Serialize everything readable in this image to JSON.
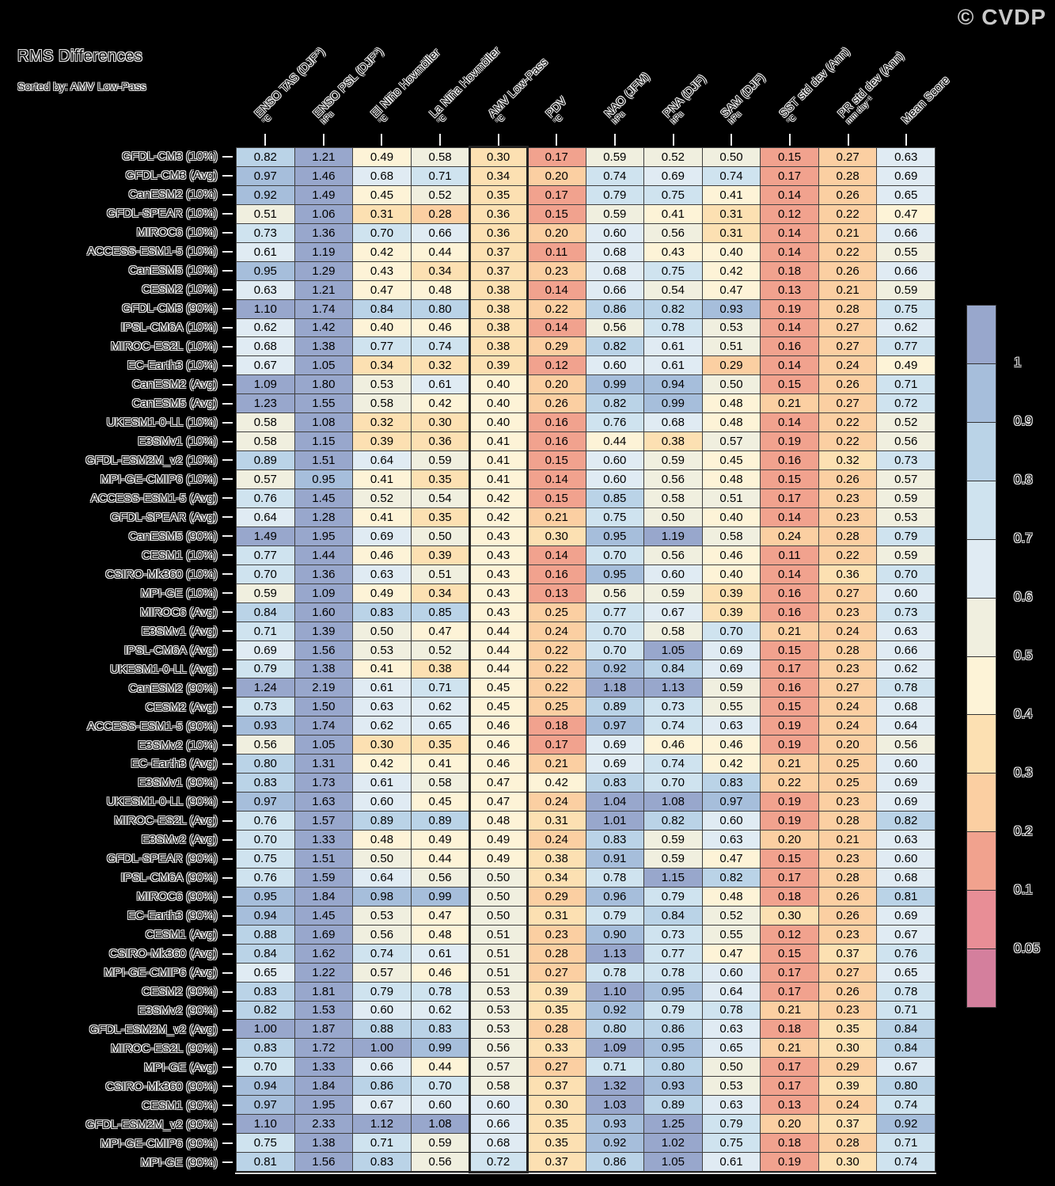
{
  "chart_data": {
    "type": "heatmap",
    "title": "RMS Differences",
    "subtitle": "Sorted by: AMV Low-Pass",
    "watermark": "© CVDP",
    "highlighted_column_index": 4,
    "highlighted_column": "AMV Low-Pass",
    "columns": [
      {
        "label": "ENSO TAS (DJF*)",
        "unit": "°C"
      },
      {
        "label": "ENSO PSL (DJF*)",
        "unit": "hPa"
      },
      {
        "label": "El Niño Hovmöller",
        "unit": "°C"
      },
      {
        "label": "La Niña Hovmöller",
        "unit": "°C"
      },
      {
        "label": "AMV Low-Pass",
        "unit": "°C"
      },
      {
        "label": "PDV",
        "unit": "°C"
      },
      {
        "label": "NAO (JFM)",
        "unit": "hPa"
      },
      {
        "label": "PNA (DJF)",
        "unit": "hPa"
      },
      {
        "label": "SAM (DJF)",
        "unit": "hPa"
      },
      {
        "label": "SST std dev (Ann)",
        "unit": "°C"
      },
      {
        "label": "PR std dev (Ann)",
        "unit": "mm day⁻¹"
      },
      {
        "label": "Mean Score",
        "unit": ""
      }
    ],
    "rows": [
      "GFDL-CM3 (10%)",
      "GFDL-CM3 (Avg)",
      "CanESM2 (10%)",
      "GFDL-SPEAR (10%)",
      "MIROC6 (10%)",
      "ACCESS-ESM1-5 (10%)",
      "CanESM5 (10%)",
      "CESM2 (10%)",
      "GFDL-CM3 (90%)",
      "IPSL-CM6A (10%)",
      "MIROC-ES2L (10%)",
      "EC-Earth3 (10%)",
      "CanESM2 (Avg)",
      "CanESM5 (Avg)",
      "UKESM1-0-LL (10%)",
      "E3SMv1 (10%)",
      "GFDL-ESM2M_v2 (10%)",
      "MPI-GE-CMIP6 (10%)",
      "ACCESS-ESM1-5 (Avg)",
      "GFDL-SPEAR (Avg)",
      "CanESM5 (90%)",
      "CESM1 (10%)",
      "CSIRO-Mk360 (10%)",
      "MPI-GE (10%)",
      "MIROC6 (Avg)",
      "E3SMv1 (Avg)",
      "IPSL-CM6A (Avg)",
      "UKESM1-0-LL (Avg)",
      "CanESM2 (90%)",
      "CESM2 (Avg)",
      "ACCESS-ESM1-5 (90%)",
      "E3SMv2 (10%)",
      "EC-Earth3 (Avg)",
      "E3SMv1 (90%)",
      "UKESM1-0-LL (90%)",
      "MIROC-ES2L (Avg)",
      "E3SMv2 (Avg)",
      "GFDL-SPEAR (90%)",
      "IPSL-CM6A (90%)",
      "MIROC6 (90%)",
      "EC-Earth3 (90%)",
      "CESM1 (Avg)",
      "CSIRO-Mk360 (Avg)",
      "MPI-GE-CMIP6 (Avg)",
      "CESM2 (90%)",
      "E3SMv2 (90%)",
      "GFDL-ESM2M_v2 (Avg)",
      "MIROC-ES2L (90%)",
      "MPI-GE (Avg)",
      "CSIRO-Mk360 (90%)",
      "CESM1 (90%)",
      "GFDL-ESM2M_v2 (90%)",
      "MPI-GE-CMIP6 (90%)",
      "MPI-GE (90%)"
    ],
    "values": [
      [
        0.82,
        1.21,
        0.49,
        0.58,
        0.3,
        0.17,
        0.59,
        0.52,
        0.5,
        0.15,
        0.27,
        0.63
      ],
      [
        0.97,
        1.46,
        0.68,
        0.71,
        0.34,
        0.2,
        0.74,
        0.69,
        0.74,
        0.17,
        0.28,
        0.69
      ],
      [
        0.92,
        1.49,
        0.45,
        0.52,
        0.35,
        0.17,
        0.79,
        0.75,
        0.41,
        0.14,
        0.26,
        0.65
      ],
      [
        0.51,
        1.06,
        0.31,
        0.28,
        0.36,
        0.15,
        0.59,
        0.41,
        0.31,
        0.12,
        0.22,
        0.47
      ],
      [
        0.73,
        1.36,
        0.7,
        0.66,
        0.36,
        0.2,
        0.6,
        0.56,
        0.31,
        0.14,
        0.21,
        0.66
      ],
      [
        0.61,
        1.19,
        0.42,
        0.44,
        0.37,
        0.11,
        0.68,
        0.43,
        0.4,
        0.14,
        0.22,
        0.55
      ],
      [
        0.95,
        1.29,
        0.43,
        0.34,
        0.37,
        0.23,
        0.68,
        0.75,
        0.42,
        0.18,
        0.26,
        0.66
      ],
      [
        0.63,
        1.21,
        0.47,
        0.48,
        0.38,
        0.14,
        0.66,
        0.54,
        0.47,
        0.13,
        0.21,
        0.59
      ],
      [
        1.1,
        1.74,
        0.84,
        0.8,
        0.38,
        0.22,
        0.86,
        0.82,
        0.93,
        0.19,
        0.28,
        0.75
      ],
      [
        0.62,
        1.42,
        0.4,
        0.46,
        0.38,
        0.14,
        0.56,
        0.78,
        0.53,
        0.14,
        0.27,
        0.62
      ],
      [
        0.68,
        1.38,
        0.77,
        0.74,
        0.38,
        0.29,
        0.82,
        0.61,
        0.51,
        0.16,
        0.27,
        0.77
      ],
      [
        0.67,
        1.05,
        0.34,
        0.32,
        0.39,
        0.12,
        0.6,
        0.61,
        0.29,
        0.14,
        0.24,
        0.49
      ],
      [
        1.09,
        1.8,
        0.53,
        0.61,
        0.4,
        0.2,
        0.99,
        0.94,
        0.5,
        0.15,
        0.26,
        0.71
      ],
      [
        1.23,
        1.55,
        0.58,
        0.42,
        0.4,
        0.26,
        0.82,
        0.99,
        0.48,
        0.21,
        0.27,
        0.72
      ],
      [
        0.58,
        1.08,
        0.32,
        0.3,
        0.4,
        0.16,
        0.76,
        0.68,
        0.48,
        0.14,
        0.22,
        0.52
      ],
      [
        0.58,
        1.15,
        0.39,
        0.36,
        0.41,
        0.16,
        0.44,
        0.38,
        0.57,
        0.19,
        0.22,
        0.56
      ],
      [
        0.89,
        1.51,
        0.64,
        0.59,
        0.41,
        0.15,
        0.6,
        0.59,
        0.45,
        0.16,
        0.32,
        0.73
      ],
      [
        0.57,
        0.95,
        0.41,
        0.35,
        0.41,
        0.14,
        0.6,
        0.56,
        0.48,
        0.15,
        0.26,
        0.57
      ],
      [
        0.76,
        1.45,
        0.52,
        0.54,
        0.42,
        0.15,
        0.85,
        0.58,
        0.51,
        0.17,
        0.23,
        0.59
      ],
      [
        0.64,
        1.28,
        0.41,
        0.35,
        0.42,
        0.21,
        0.75,
        0.5,
        0.4,
        0.14,
        0.23,
        0.53
      ],
      [
        1.49,
        1.95,
        0.69,
        0.5,
        0.43,
        0.3,
        0.95,
        1.19,
        0.58,
        0.24,
        0.28,
        0.79
      ],
      [
        0.77,
        1.44,
        0.46,
        0.39,
        0.43,
        0.14,
        0.7,
        0.56,
        0.46,
        0.11,
        0.22,
        0.59
      ],
      [
        0.7,
        1.36,
        0.63,
        0.51,
        0.43,
        0.16,
        0.95,
        0.6,
        0.4,
        0.14,
        0.36,
        0.7
      ],
      [
        0.59,
        1.09,
        0.49,
        0.34,
        0.43,
        0.13,
        0.56,
        0.59,
        0.39,
        0.16,
        0.27,
        0.6
      ],
      [
        0.84,
        1.6,
        0.83,
        0.85,
        0.43,
        0.25,
        0.77,
        0.67,
        0.39,
        0.16,
        0.23,
        0.73
      ],
      [
        0.71,
        1.39,
        0.5,
        0.47,
        0.44,
        0.24,
        0.7,
        0.58,
        0.7,
        0.21,
        0.24,
        0.63
      ],
      [
        0.69,
        1.56,
        0.53,
        0.52,
        0.44,
        0.22,
        0.7,
        1.05,
        0.69,
        0.15,
        0.28,
        0.66
      ],
      [
        0.79,
        1.38,
        0.41,
        0.38,
        0.44,
        0.22,
        0.92,
        0.84,
        0.69,
        0.17,
        0.23,
        0.62
      ],
      [
        1.24,
        2.19,
        0.61,
        0.71,
        0.45,
        0.22,
        1.18,
        1.13,
        0.59,
        0.16,
        0.27,
        0.78
      ],
      [
        0.73,
        1.5,
        0.63,
        0.62,
        0.45,
        0.25,
        0.89,
        0.73,
        0.55,
        0.15,
        0.24,
        0.68
      ],
      [
        0.93,
        1.74,
        0.62,
        0.65,
        0.46,
        0.18,
        0.97,
        0.74,
        0.63,
        0.19,
        0.24,
        0.64
      ],
      [
        0.56,
        1.05,
        0.3,
        0.35,
        0.46,
        0.17,
        0.69,
        0.46,
        0.46,
        0.19,
        0.2,
        0.56
      ],
      [
        0.8,
        1.31,
        0.42,
        0.41,
        0.46,
        0.21,
        0.69,
        0.74,
        0.42,
        0.21,
        0.25,
        0.6
      ],
      [
        0.83,
        1.73,
        0.61,
        0.58,
        0.47,
        0.42,
        0.83,
        0.7,
        0.83,
        0.22,
        0.25,
        0.69
      ],
      [
        0.97,
        1.63,
        0.6,
        0.45,
        0.47,
        0.24,
        1.04,
        1.08,
        0.97,
        0.19,
        0.23,
        0.69
      ],
      [
        0.76,
        1.57,
        0.89,
        0.89,
        0.48,
        0.31,
        1.01,
        0.82,
        0.6,
        0.19,
        0.28,
        0.82
      ],
      [
        0.7,
        1.33,
        0.48,
        0.49,
        0.49,
        0.24,
        0.83,
        0.59,
        0.63,
        0.2,
        0.21,
        0.63
      ],
      [
        0.75,
        1.51,
        0.5,
        0.44,
        0.49,
        0.38,
        0.91,
        0.59,
        0.47,
        0.15,
        0.23,
        0.6
      ],
      [
        0.76,
        1.59,
        0.64,
        0.56,
        0.5,
        0.34,
        0.78,
        1.15,
        0.82,
        0.17,
        0.28,
        0.68
      ],
      [
        0.95,
        1.84,
        0.98,
        0.99,
        0.5,
        0.29,
        0.96,
        0.79,
        0.48,
        0.18,
        0.26,
        0.81
      ],
      [
        0.94,
        1.45,
        0.53,
        0.47,
        0.5,
        0.31,
        0.79,
        0.84,
        0.52,
        0.3,
        0.26,
        0.69
      ],
      [
        0.88,
        1.69,
        0.56,
        0.48,
        0.51,
        0.23,
        0.9,
        0.73,
        0.55,
        0.12,
        0.23,
        0.67
      ],
      [
        0.84,
        1.62,
        0.74,
        0.61,
        0.51,
        0.28,
        1.13,
        0.77,
        0.47,
        0.15,
        0.37,
        0.76
      ],
      [
        0.65,
        1.22,
        0.57,
        0.46,
        0.51,
        0.27,
        0.78,
        0.78,
        0.6,
        0.17,
        0.27,
        0.65
      ],
      [
        0.83,
        1.81,
        0.79,
        0.78,
        0.53,
        0.39,
        1.1,
        0.95,
        0.64,
        0.17,
        0.26,
        0.78
      ],
      [
        0.82,
        1.53,
        0.6,
        0.62,
        0.53,
        0.35,
        0.92,
        0.79,
        0.78,
        0.21,
        0.23,
        0.71
      ],
      [
        1.0,
        1.87,
        0.88,
        0.83,
        0.53,
        0.28,
        0.8,
        0.86,
        0.63,
        0.18,
        0.35,
        0.84
      ],
      [
        0.83,
        1.72,
        1.0,
        0.99,
        0.56,
        0.33,
        1.09,
        0.95,
        0.65,
        0.21,
        0.3,
        0.84
      ],
      [
        0.7,
        1.33,
        0.66,
        0.44,
        0.57,
        0.27,
        0.71,
        0.8,
        0.5,
        0.17,
        0.29,
        0.67
      ],
      [
        0.94,
        1.84,
        0.86,
        0.7,
        0.58,
        0.37,
        1.32,
        0.93,
        0.53,
        0.17,
        0.39,
        0.8
      ],
      [
        0.97,
        1.95,
        0.67,
        0.6,
        0.6,
        0.3,
        1.03,
        0.89,
        0.63,
        0.13,
        0.24,
        0.74
      ],
      [
        1.1,
        2.33,
        1.12,
        1.08,
        0.66,
        0.35,
        0.93,
        1.25,
        0.79,
        0.2,
        0.37,
        0.92
      ],
      [
        0.75,
        1.38,
        0.71,
        0.59,
        0.68,
        0.35,
        0.92,
        1.02,
        0.75,
        0.18,
        0.28,
        0.71
      ],
      [
        0.81,
        1.56,
        0.83,
        0.56,
        0.72,
        0.37,
        0.86,
        1.05,
        0.61,
        0.19,
        0.3,
        0.74
      ]
    ],
    "colorbar": {
      "boundary_labels": [
        "1",
        "0.9",
        "0.8",
        "0.7",
        "0.6",
        "0.5",
        "0.4",
        "0.3",
        "0.2",
        "0.1",
        "0.05"
      ],
      "thresholds": [
        1,
        0.9,
        0.8,
        0.7,
        0.6,
        0.5,
        0.4,
        0.3,
        0.2,
        0.1,
        0.05
      ],
      "colors_top_to_bottom": [
        "#98a7cc",
        "#a6bedb",
        "#bad3e7",
        "#cfe3ef",
        "#e0ebf3",
        "#f0efdf",
        "#fdf3d7",
        "#fce0b2",
        "#fbcfa2",
        "#f1a28e",
        "#e88e96",
        "#d47f9d"
      ],
      "highlight_border_color": "#222222"
    }
  }
}
